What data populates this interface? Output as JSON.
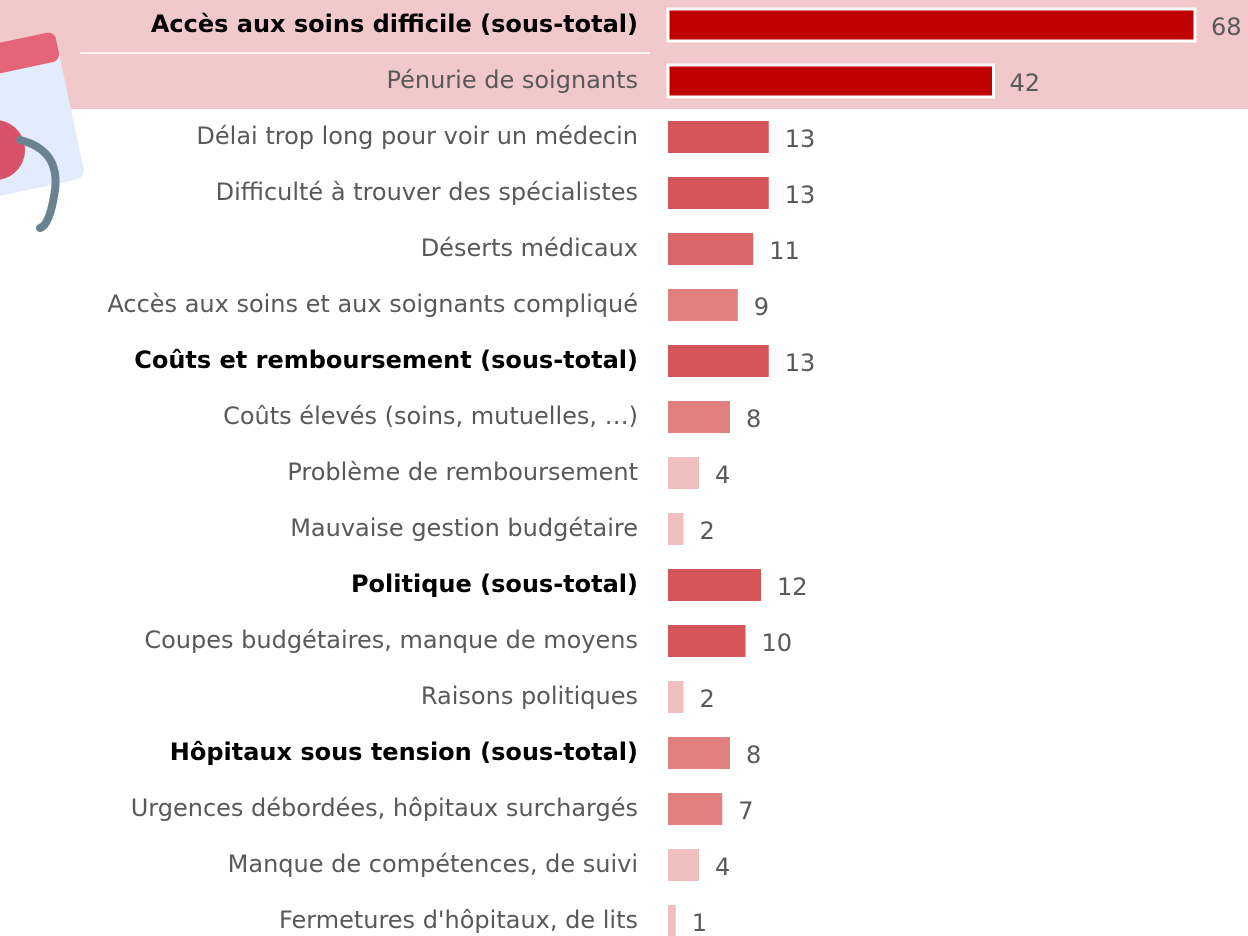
{
  "chart_data": {
    "type": "barh",
    "categories": [
      "Accès aux soins difficile (sous-total)",
      "Pénurie de soignants",
      "Délai trop long pour voir un médecin",
      "Difficulté à trouver des spécialistes",
      "Déserts médicaux",
      "Accès aux soins et aux soignants compliqué",
      "Coûts et remboursement (sous-total)",
      "Coûts élevés (soins, mutuelles, …)",
      "Problème de remboursement",
      "Mauvaise gestion budgétaire",
      "Politique (sous-total)",
      "Coupes budgétaires, manque de moyens",
      "Raisons politiques",
      "Hôpitaux sous tension (sous-total)",
      "Urgences débordées, hôpitaux surchargés",
      "Manque de compétences, de suivi",
      "Fermetures d'hôpitaux, de lits"
    ],
    "values": [
      68,
      42,
      13,
      13,
      11,
      9,
      13,
      8,
      4,
      2,
      12,
      10,
      2,
      8,
      7,
      4,
      1
    ],
    "colors": [
      "#c00000",
      "#c00000",
      "#d55457",
      "#d55457",
      "#d9676a",
      "#e08080",
      "#d55457",
      "#e08080",
      "#f0c0c0",
      "#f0c0c0",
      "#d55457",
      "#d55457",
      "#f0c0c0",
      "#e08080",
      "#e08080",
      "#f0c0c0",
      "#f0c0c0"
    ],
    "bold_categories": [
      0,
      6,
      10,
      13
    ],
    "highlighted": [
      0,
      1
    ]
  }
}
